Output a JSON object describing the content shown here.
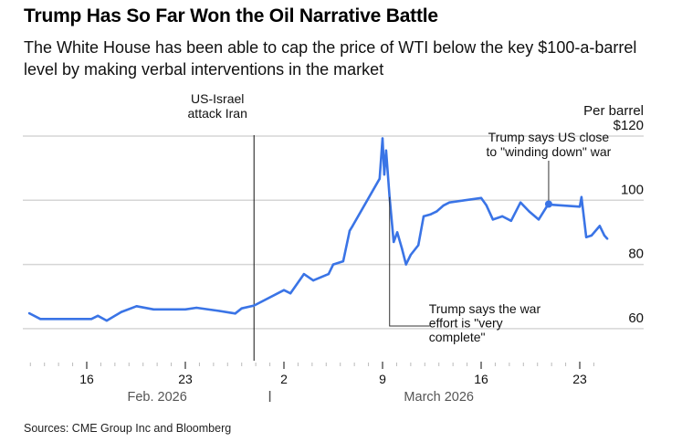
{
  "title": "Trump Has So Far Won the Oil Narrative Battle",
  "subtitle": "The White House has been able to cap the price of WTI below the key $100-a-barrel level by making verbal interventions in the market",
  "sources": "Sources: CME Group Inc and Bloomberg",
  "chart_data": {
    "type": "line",
    "ylabel": "Per barrel",
    "ylim": [
      50,
      120
    ],
    "yticks": [
      60,
      80,
      100,
      120
    ],
    "ytick_labels": [
      "60",
      "80",
      "100",
      "$120"
    ],
    "xlim": [
      "2026-02-11",
      "2026-03-26"
    ],
    "xticks": [
      "2026-02-16",
      "2026-02-23",
      "2026-03-02",
      "2026-03-09",
      "2026-03-16",
      "2026-03-23"
    ],
    "xtick_labels": [
      "16",
      "23",
      "2",
      "9",
      "16",
      "23"
    ],
    "month_labels": [
      {
        "label": "Feb. 2026",
        "center": "2026-02-21"
      },
      {
        "label": "March 2026",
        "center": "2026-03-13"
      }
    ],
    "grid": true,
    "line_color": "#3a74e6",
    "series": [
      {
        "x": [
          "2026-02-11T22:00",
          "2026-02-12T17:00",
          "2026-02-16T08:00",
          "2026-02-16T19:00",
          "2026-02-17T10:00",
          "2026-02-18T11:00",
          "2026-02-19T13:00",
          "2026-02-20T18:00",
          "2026-02-23T00:00",
          "2026-02-23T19:00",
          "2026-02-25T10:00",
          "2026-02-26T13:00",
          "2026-02-27T00:00",
          "2026-02-27T21:00",
          "2026-03-02T00:00",
          "2026-03-02T11:00",
          "2026-03-03T10:00",
          "2026-03-04T02:00",
          "2026-03-05T04:00",
          "2026-03-05T12:00",
          "2026-03-06T05:00",
          "2026-03-06T16:00",
          "2026-03-06T21:00",
          "2026-03-08T19:00",
          "2026-03-09T00:00",
          "2026-03-09T03:00",
          "2026-03-09T06:00",
          "2026-03-09T12:00",
          "2026-03-09T19:00",
          "2026-03-10T01:00",
          "2026-03-10T09:00",
          "2026-03-10T16:00",
          "2026-03-11T00:00",
          "2026-03-11T13:00",
          "2026-03-11T22:00",
          "2026-03-12T10:00",
          "2026-03-12T20:00",
          "2026-03-13T08:00",
          "2026-03-13T18:00",
          "2026-03-16T00:00",
          "2026-03-16T09:00",
          "2026-03-16T20:00",
          "2026-03-17T12:00",
          "2026-03-18T03:00",
          "2026-03-18T19:00",
          "2026-03-19T10:00",
          "2026-03-20T02:00",
          "2026-03-20T18:00",
          "2026-03-23T00:00",
          "2026-03-23T03:00",
          "2026-03-23T11:00",
          "2026-03-23T20:00",
          "2026-03-24T10:00",
          "2026-03-24T18:00",
          "2026-03-24T23:00"
        ],
        "y": [
          64.8,
          63,
          63,
          64,
          62.5,
          65.2,
          67,
          66,
          66,
          66.5,
          65.5,
          64.7,
          66.3,
          67.2,
          72,
          71,
          77,
          75,
          77,
          80,
          81,
          90.5,
          92,
          106.7,
          119.3,
          108,
          115.5,
          101,
          87,
          90,
          85,
          80,
          83,
          86,
          95,
          95.6,
          96.5,
          98.4,
          99.3,
          100.7,
          98.4,
          94,
          95,
          93.6,
          99.3,
          96.5,
          94,
          98.7,
          98,
          101,
          88.5,
          89,
          92,
          89,
          88
        ]
      }
    ],
    "annotations": [
      {
        "label_lines": [
          "US-Israel",
          "attack Iran"
        ],
        "x": "2026-02-27T21:00",
        "type": "vertical-line"
      },
      {
        "label_lines": [
          "Trump says US close",
          "to \"winding down\" war"
        ],
        "x": "2026-03-20T19:00",
        "y": 98.8
      },
      {
        "label_lines": [
          "Trump says the war",
          "effort is \"very",
          "complete\""
        ],
        "x": "2026-03-09T12:00",
        "y": 101
      }
    ]
  }
}
